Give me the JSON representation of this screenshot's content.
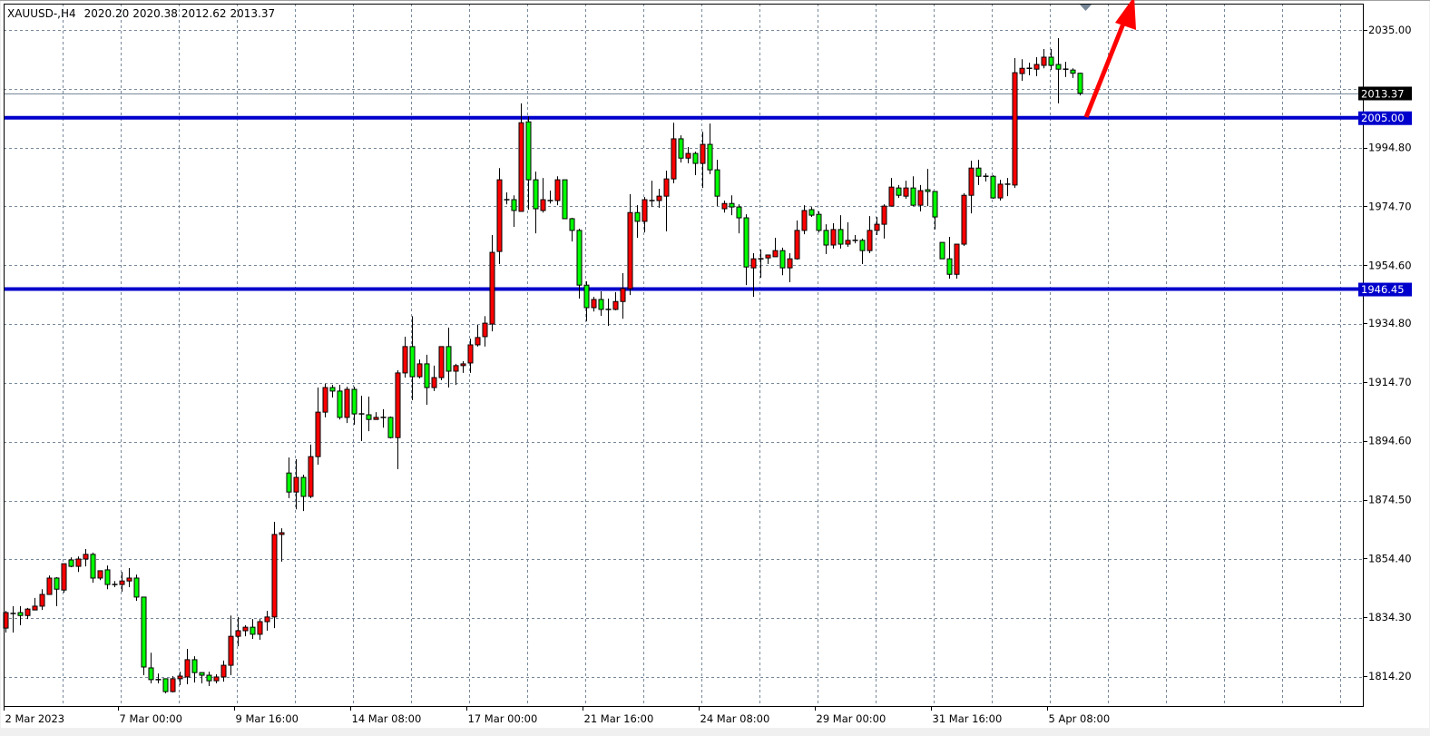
{
  "header": {
    "symbol": "XAUUSD-,H4",
    "open": "2020.20",
    "high": "2020.38",
    "low": "2012.62",
    "close": "2013.37"
  },
  "chart_data": {
    "type": "candlestick",
    "symbol": "XAUUSD-",
    "timeframe": "H4",
    "ylim": [
      1804,
      2044
    ],
    "grid": true,
    "y_tick_labels": [
      "2035.00",
      "1994.80",
      "1974.70",
      "1954.60",
      "1934.80",
      "1914.70",
      "1894.60",
      "1874.50",
      "1854.40",
      "1834.30",
      "1814.20"
    ],
    "x_tick_labels": [
      "2 Mar 2023",
      "7 Mar 00:00",
      "9 Mar 16:00",
      "14 Mar 08:00",
      "17 Mar 00:00",
      "21 Mar 16:00",
      "24 Mar 08:00",
      "29 Mar 00:00",
      "31 Mar 16:00",
      "5 Apr 08:00"
    ],
    "colors": {
      "bull": "#ff0000",
      "bear": "#00ff00",
      "outline": "#000000",
      "grid": "#778899",
      "level_line": "#0000cc",
      "arrow": "#ff0000"
    },
    "horizontal_lines": [
      {
        "price": 2005.0,
        "label": "2005.00"
      },
      {
        "price": 1946.45,
        "label": "1946.45"
      }
    ],
    "current_price": {
      "value": 2013.37,
      "label": "2013.37"
    },
    "annotations": [
      {
        "type": "arrow",
        "direction": "up",
        "color": "#ff0000"
      }
    ],
    "ohlc_fields": [
      "open",
      "high",
      "low",
      "close"
    ],
    "candles": [
      [
        1830.6,
        1836.5,
        1829.1,
        1835.9
      ],
      [
        1835.6,
        1838.1,
        1829.1,
        1835.6
      ],
      [
        1835.9,
        1838.1,
        1831.6,
        1834.9
      ],
      [
        1834.9,
        1837.5,
        1833.7,
        1837.1
      ],
      [
        1836.8,
        1840.9,
        1836.8,
        1838.1
      ],
      [
        1838.1,
        1843.9,
        1836.8,
        1842.1
      ],
      [
        1842.1,
        1848.6,
        1842.1,
        1847.7
      ],
      [
        1847.7,
        1848.0,
        1838.1,
        1843.9
      ],
      [
        1843.6,
        1852.6,
        1842.7,
        1852.6
      ],
      [
        1853.9,
        1854.8,
        1851.4,
        1851.7
      ],
      [
        1851.7,
        1855.1,
        1849.8,
        1854.2
      ],
      [
        1854.2,
        1857.6,
        1851.7,
        1855.8
      ],
      [
        1855.8,
        1856.4,
        1846.1,
        1847.7
      ],
      [
        1847.7,
        1850.2,
        1847.0,
        1850.2
      ],
      [
        1850.5,
        1852.0,
        1843.9,
        1845.5
      ],
      [
        1845.5,
        1846.7,
        1844.6,
        1845.5
      ],
      [
        1845.5,
        1849.8,
        1843.0,
        1846.7
      ],
      [
        1846.7,
        1851.1,
        1844.6,
        1847.7
      ],
      [
        1847.7,
        1848.9,
        1839.9,
        1841.2
      ],
      [
        1841.2,
        1841.2,
        1814.5,
        1817.3
      ],
      [
        1817.0,
        1822.2,
        1811.7,
        1813.0
      ],
      [
        1813.0,
        1815.1,
        1811.7,
        1813.0
      ],
      [
        1813.3,
        1813.3,
        1808.3,
        1808.9
      ],
      [
        1808.9,
        1814.2,
        1808.6,
        1813.3
      ],
      [
        1813.3,
        1815.7,
        1811.1,
        1814.2
      ],
      [
        1813.9,
        1823.5,
        1811.4,
        1819.8
      ],
      [
        1819.8,
        1821.0,
        1812.0,
        1815.4
      ],
      [
        1815.4,
        1815.4,
        1811.7,
        1814.5
      ],
      [
        1814.5,
        1815.7,
        1810.8,
        1812.6
      ],
      [
        1812.6,
        1814.8,
        1811.7,
        1813.9
      ],
      [
        1813.9,
        1819.5,
        1812.3,
        1817.9
      ],
      [
        1817.9,
        1834.9,
        1814.5,
        1827.8
      ],
      [
        1827.8,
        1834.4,
        1824.4,
        1829.7
      ],
      [
        1829.7,
        1831.6,
        1827.8,
        1830.9
      ],
      [
        1830.9,
        1833.7,
        1826.9,
        1828.5
      ],
      [
        1828.5,
        1833.7,
        1826.6,
        1832.8
      ],
      [
        1832.8,
        1836.5,
        1829.7,
        1834.4
      ],
      [
        1834.4,
        1866.9,
        1830.6,
        1862.6
      ],
      [
        1862.6,
        1864.7,
        1853.3,
        1863.2
      ],
      [
        1883.6,
        1888.9,
        1875.0,
        1877.1
      ],
      [
        1877.1,
        1888.3,
        1871.2,
        1882.1
      ],
      [
        1882.1,
        1883.0,
        1870.6,
        1875.6
      ],
      [
        1875.6,
        1893.3,
        1875.0,
        1889.2
      ],
      [
        1889.2,
        1912.8,
        1886.4,
        1904.4
      ],
      [
        1904.4,
        1914.1,
        1902.6,
        1912.8
      ],
      [
        1912.8,
        1913.7,
        1909.4,
        1911.6
      ],
      [
        1911.6,
        1913.7,
        1901.9,
        1902.6
      ],
      [
        1902.6,
        1913.1,
        1900.7,
        1912.2
      ],
      [
        1912.2,
        1913.1,
        1900.1,
        1903.8
      ],
      [
        1903.8,
        1910.0,
        1894.5,
        1903.8
      ],
      [
        1903.5,
        1909.7,
        1897.9,
        1901.9
      ],
      [
        1901.9,
        1904.4,
        1901.9,
        1902.6
      ],
      [
        1902.6,
        1905.4,
        1899.1,
        1902.6
      ],
      [
        1902.6,
        1902.9,
        1895.4,
        1895.7
      ],
      [
        1895.7,
        1918.7,
        1884.9,
        1917.8
      ],
      [
        1917.8,
        1930.2,
        1916.2,
        1926.8
      ],
      [
        1926.8,
        1937.2,
        1908.5,
        1916.5
      ],
      [
        1916.5,
        1922.4,
        1915.9,
        1920.9
      ],
      [
        1920.9,
        1924.0,
        1906.9,
        1912.8
      ],
      [
        1912.8,
        1920.3,
        1911.6,
        1916.2
      ],
      [
        1916.2,
        1926.8,
        1915.3,
        1926.8
      ],
      [
        1926.8,
        1933.3,
        1912.8,
        1918.4
      ],
      [
        1918.4,
        1920.9,
        1913.7,
        1920.3
      ],
      [
        1920.3,
        1921.8,
        1917.8,
        1920.9
      ],
      [
        1921.2,
        1929.5,
        1917.8,
        1927.4
      ],
      [
        1927.4,
        1934.2,
        1926.8,
        1929.9
      ],
      [
        1930.2,
        1937.2,
        1926.8,
        1934.8
      ],
      [
        1934.5,
        1964.9,
        1932.0,
        1959.0
      ],
      [
        1959.3,
        1987.8,
        1955.0,
        1983.8
      ],
      [
        1977.0,
        1979.5,
        1975.4,
        1977.0
      ],
      [
        1977.0,
        1978.5,
        1967.7,
        1973.3
      ],
      [
        1973.0,
        2009.9,
        1973.0,
        2003.3
      ],
      [
        2003.6,
        2005.5,
        1973.6,
        1983.8
      ],
      [
        1983.8,
        1986.6,
        1965.5,
        1973.9
      ],
      [
        1973.3,
        1984.4,
        1972.6,
        1977.0
      ],
      [
        1976.7,
        1980.1,
        1975.7,
        1976.7
      ],
      [
        1976.7,
        1985.0,
        1975.1,
        1983.8
      ],
      [
        1983.8,
        1983.8,
        1970.5,
        1970.5
      ],
      [
        1970.5,
        1970.8,
        1962.7,
        1966.5
      ],
      [
        1966.5,
        1967.1,
        1943.2,
        1947.8
      ],
      [
        1947.8,
        1949.1,
        1935.4,
        1940.1
      ],
      [
        1940.1,
        1943.8,
        1938.8,
        1942.9
      ],
      [
        1942.9,
        1945.7,
        1937.3,
        1939.5
      ],
      [
        1939.5,
        1943.2,
        1933.9,
        1939.5
      ],
      [
        1939.5,
        1945.4,
        1939.2,
        1942.2
      ],
      [
        1942.2,
        1951.9,
        1936.3,
        1946.6
      ],
      [
        1946.6,
        1978.9,
        1944.4,
        1972.6
      ],
      [
        1972.6,
        1975.1,
        1964.0,
        1969.6
      ],
      [
        1969.6,
        1977.9,
        1965.8,
        1977.0
      ],
      [
        1976.7,
        1983.5,
        1974.5,
        1976.7
      ],
      [
        1976.7,
        1980.7,
        1974.2,
        1978.2
      ],
      [
        1978.2,
        1986.9,
        1966.2,
        1984.1
      ],
      [
        1984.1,
        2003.3,
        1982.6,
        1997.8
      ],
      [
        1997.8,
        1999.0,
        1989.7,
        1991.2
      ],
      [
        1991.2,
        1995.0,
        1989.4,
        1992.8
      ],
      [
        1992.8,
        1993.4,
        1985.4,
        1989.4
      ],
      [
        1989.4,
        2000.2,
        1981.0,
        1995.9
      ],
      [
        1995.9,
        2003.0,
        1985.7,
        1987.2
      ],
      [
        1987.2,
        1990.6,
        1974.8,
        1978.2
      ],
      [
        1973.9,
        1976.7,
        1972.6,
        1975.7
      ],
      [
        1975.7,
        1978.5,
        1971.7,
        1974.5
      ],
      [
        1974.5,
        1975.4,
        1965.5,
        1970.8
      ],
      [
        1970.8,
        1972.0,
        1947.8,
        1954.0
      ],
      [
        1953.7,
        1958.7,
        1943.8,
        1956.8
      ],
      [
        1956.8,
        1960.0,
        1950.3,
        1956.8
      ],
      [
        1957.1,
        1958.1,
        1955.0,
        1958.1
      ],
      [
        1957.5,
        1964.0,
        1957.5,
        1959.6
      ],
      [
        1959.6,
        1960.6,
        1951.2,
        1953.7
      ],
      [
        1953.7,
        1958.7,
        1948.8,
        1956.8
      ],
      [
        1956.8,
        1969.9,
        1956.5,
        1966.5
      ],
      [
        1966.5,
        1975.1,
        1965.2,
        1973.3
      ],
      [
        1973.6,
        1974.5,
        1971.1,
        1971.7
      ],
      [
        1972.0,
        1973.0,
        1965.8,
        1966.5
      ],
      [
        1966.5,
        1968.6,
        1958.4,
        1961.5
      ],
      [
        1961.5,
        1969.0,
        1960.3,
        1966.8
      ],
      [
        1966.8,
        1971.7,
        1960.3,
        1961.8
      ],
      [
        1961.8,
        1969.3,
        1960.9,
        1963.1
      ],
      [
        1963.1,
        1964.9,
        1962.1,
        1963.1
      ],
      [
        1963.1,
        1963.7,
        1955.0,
        1959.6
      ],
      [
        1959.6,
        1971.4,
        1958.7,
        1966.5
      ],
      [
        1966.5,
        1971.1,
        1964.9,
        1968.6
      ],
      [
        1968.6,
        1975.4,
        1963.7,
        1974.8
      ],
      [
        1974.8,
        1984.4,
        1974.8,
        1981.3
      ],
      [
        1981.0,
        1982.0,
        1977.6,
        1978.5
      ],
      [
        1978.2,
        1983.5,
        1977.3,
        1981.0
      ],
      [
        1981.0,
        1985.0,
        1974.8,
        1975.1
      ],
      [
        1975.1,
        1982.0,
        1973.0,
        1980.1
      ],
      [
        1980.4,
        1987.5,
        1974.8,
        1979.8
      ],
      [
        1979.8,
        1979.8,
        1966.8,
        1971.1
      ],
      [
        1962.4,
        1962.4,
        1956.8,
        1956.8
      ],
      [
        1956.8,
        1964.3,
        1950.0,
        1951.5
      ],
      [
        1951.5,
        1961.8,
        1950.0,
        1961.8
      ],
      [
        1961.8,
        1979.2,
        1961.2,
        1978.5
      ],
      [
        1978.5,
        1990.3,
        1972.3,
        1987.8
      ],
      [
        1987.8,
        1990.6,
        1982.0,
        1985.0
      ],
      [
        1985.0,
        1986.0,
        1983.2,
        1985.0
      ],
      [
        1985.0,
        1985.4,
        1977.3,
        1977.6
      ],
      [
        1977.6,
        1983.8,
        1976.7,
        1982.3
      ],
      [
        1982.0,
        1984.4,
        1978.2,
        1982.3
      ],
      [
        1982.0,
        2025.4,
        1981.0,
        2020.4
      ],
      [
        2020.1,
        2025.0,
        2017.6,
        2021.9
      ],
      [
        2021.9,
        2023.8,
        2019.5,
        2021.9
      ],
      [
        2021.6,
        2025.7,
        2019.2,
        2023.2
      ],
      [
        2022.9,
        2028.5,
        2021.9,
        2025.7
      ],
      [
        2025.7,
        2028.5,
        2021.3,
        2022.9
      ],
      [
        2023.2,
        2032.2,
        2009.9,
        2021.6
      ],
      [
        2021.6,
        2024.1,
        2018.9,
        2021.3
      ],
      [
        2021.3,
        2021.9,
        2018.6,
        2020.2
      ],
      [
        2020.2,
        2020.38,
        2012.62,
        2013.37
      ]
    ]
  }
}
